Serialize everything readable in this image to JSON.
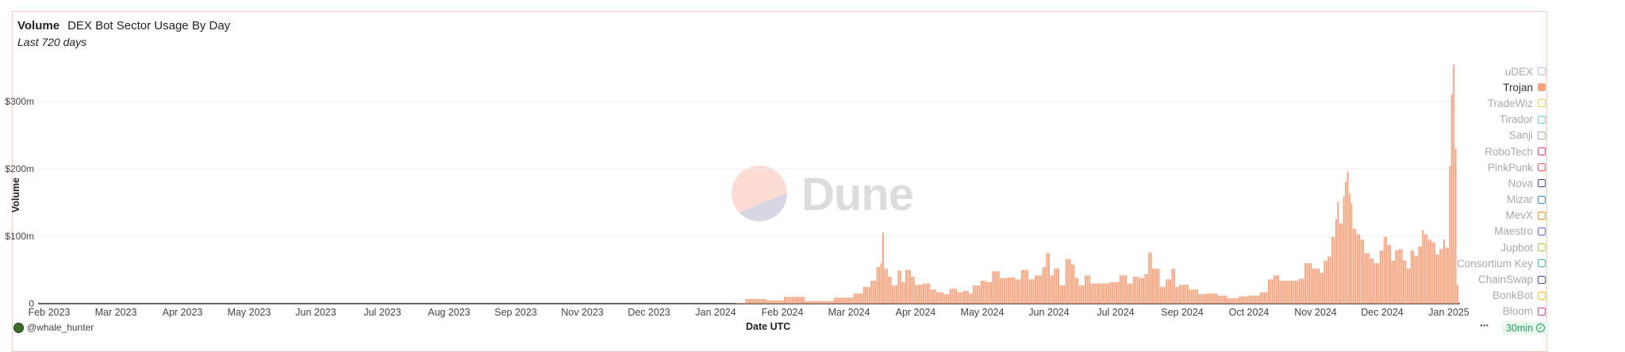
{
  "header": {
    "metric": "Volume",
    "title": "DEX Bot Sector Usage By Day",
    "subtitle": "Last 720 days"
  },
  "footer": {
    "author": "@whale_hunter",
    "more": "···",
    "refresh": "30min"
  },
  "watermark": "Dune",
  "colors": {
    "trojan": "#f6a47f",
    "grid": "#efefef",
    "axis": "#333333"
  },
  "legend": [
    {
      "name": "uDEX",
      "color": "#c9b9e6",
      "active": false
    },
    {
      "name": "Trojan",
      "color": "#f6a47f",
      "active": true
    },
    {
      "name": "TradeWiz",
      "color": "#f2cf5e",
      "active": false
    },
    {
      "name": "Tirador",
      "color": "#72cfd6",
      "active": false
    },
    {
      "name": "Sanji",
      "color": "#a8a8a8",
      "active": false
    },
    {
      "name": "RoboTech",
      "color": "#d2368c",
      "active": false
    },
    {
      "name": "PinkPunk",
      "color": "#e54f58",
      "active": false
    },
    {
      "name": "Nova",
      "color": "#4a3f8e",
      "active": false
    },
    {
      "name": "Mizar",
      "color": "#2a8ed3",
      "active": false
    },
    {
      "name": "MevX",
      "color": "#e58f2a",
      "active": false
    },
    {
      "name": "Maestro",
      "color": "#6a5fd6",
      "active": false
    },
    {
      "name": "Jupbot",
      "color": "#a6c648",
      "active": false
    },
    {
      "name": "Consortium Key",
      "color": "#38b698",
      "active": false
    },
    {
      "name": "ChainSwap",
      "color": "#4a4a98",
      "active": false
    },
    {
      "name": "BonkBot",
      "color": "#efbf1f",
      "active": false
    },
    {
      "name": "Bloom",
      "color": "#bf3f9f",
      "active": false
    }
  ],
  "chart_data": {
    "type": "bar",
    "stacked": true,
    "xlabel": "Date UTC",
    "ylabel": "Volume",
    "x_range": [
      "2023-01-16",
      "2025-01-05"
    ],
    "ylim": [
      0,
      360000000
    ],
    "grid": true,
    "legend_placement": "right",
    "x_ticks": [
      "Feb 2023",
      "Mar 2023",
      "Apr 2023",
      "May 2023",
      "Jun 2023",
      "Jul 2023",
      "Aug 2023",
      "Sep 2023",
      "Nov 2023",
      "Dec 2023",
      "Jan 2024",
      "Feb 2024",
      "Mar 2024",
      "Apr 2024",
      "May 2024",
      "Jun 2024",
      "Jul 2024",
      "Sep 2024",
      "Oct 2024",
      "Nov 2024",
      "Dec 2024",
      "Jan 2025"
    ],
    "y_ticks": [
      {
        "value": 0,
        "label": "0"
      },
      {
        "value": 100000000,
        "label": "$100m"
      },
      {
        "value": 200000000,
        "label": "$200m"
      },
      {
        "value": 300000000,
        "label": "$300m"
      }
    ],
    "series": [
      {
        "name": "Trojan",
        "unit": "USD millions",
        "points": [
          [
            "2023-12-28",
            1
          ],
          [
            "2024-01-06",
            7
          ],
          [
            "2024-01-18",
            5
          ],
          [
            "2024-01-24",
            10
          ],
          [
            "2024-02-09",
            4
          ],
          [
            "2024-02-24",
            9
          ],
          [
            "2024-02-28",
            15
          ],
          [
            "2024-03-05",
            25
          ],
          [
            "2024-03-08",
            34
          ],
          [
            "2024-03-10",
            54
          ],
          [
            "2024-03-12",
            60
          ],
          [
            "2024-03-13",
            106
          ],
          [
            "2024-03-14",
            52
          ],
          [
            "2024-03-16",
            40
          ],
          [
            "2024-03-19",
            27
          ],
          [
            "2024-03-21",
            49
          ],
          [
            "2024-03-23",
            32
          ],
          [
            "2024-03-26",
            50
          ],
          [
            "2024-03-28",
            40
          ],
          [
            "2024-03-31",
            28
          ],
          [
            "2024-04-04",
            30
          ],
          [
            "2024-04-08",
            21
          ],
          [
            "2024-04-11",
            17
          ],
          [
            "2024-04-15",
            14
          ],
          [
            "2024-04-18",
            22
          ],
          [
            "2024-04-22",
            17
          ],
          [
            "2024-04-25",
            19
          ],
          [
            "2024-04-27",
            15
          ],
          [
            "2024-04-30",
            27
          ],
          [
            "2024-05-04",
            34
          ],
          [
            "2024-05-07",
            32
          ],
          [
            "2024-05-10",
            48
          ],
          [
            "2024-05-14",
            38
          ],
          [
            "2024-05-18",
            39
          ],
          [
            "2024-05-22",
            36
          ],
          [
            "2024-05-25",
            50
          ],
          [
            "2024-05-29",
            36
          ],
          [
            "2024-06-01",
            42
          ],
          [
            "2024-06-05",
            54
          ],
          [
            "2024-06-06",
            75
          ],
          [
            "2024-06-08",
            42
          ],
          [
            "2024-06-11",
            52
          ],
          [
            "2024-06-14",
            27
          ],
          [
            "2024-06-17",
            66
          ],
          [
            "2024-06-19",
            58
          ],
          [
            "2024-06-21",
            38
          ],
          [
            "2024-06-23",
            27
          ],
          [
            "2024-06-27",
            42
          ],
          [
            "2024-06-30",
            30
          ],
          [
            "2024-07-05",
            30
          ],
          [
            "2024-07-12",
            32
          ],
          [
            "2024-07-15",
            42
          ],
          [
            "2024-07-19",
            30
          ],
          [
            "2024-07-22",
            40
          ],
          [
            "2024-07-25",
            38
          ],
          [
            "2024-07-27",
            44
          ],
          [
            "2024-07-29",
            76
          ],
          [
            "2024-08-01",
            52
          ],
          [
            "2024-08-05",
            25
          ],
          [
            "2024-08-08",
            36
          ],
          [
            "2024-08-10",
            52
          ],
          [
            "2024-08-12",
            25
          ],
          [
            "2024-08-15",
            28
          ],
          [
            "2024-08-21",
            21
          ],
          [
            "2024-08-25",
            14
          ],
          [
            "2024-08-30",
            15
          ],
          [
            "2024-09-05",
            12
          ],
          [
            "2024-09-10",
            8
          ],
          [
            "2024-09-16",
            11
          ],
          [
            "2024-09-21",
            12
          ],
          [
            "2024-09-27",
            17
          ],
          [
            "2024-09-30",
            36
          ],
          [
            "2024-10-02",
            42
          ],
          [
            "2024-10-06",
            34
          ],
          [
            "2024-10-12",
            34
          ],
          [
            "2024-10-16",
            37
          ],
          [
            "2024-10-19",
            60
          ],
          [
            "2024-10-23",
            52
          ],
          [
            "2024-10-27",
            46
          ],
          [
            "2024-10-28",
            64
          ],
          [
            "2024-10-31",
            70
          ],
          [
            "2024-11-01",
            99
          ],
          [
            "2024-11-03",
            125
          ],
          [
            "2024-11-04",
            151
          ],
          [
            "2024-11-05",
            119
          ],
          [
            "2024-11-07",
            159
          ],
          [
            "2024-11-08",
            181
          ],
          [
            "2024-11-09",
            196
          ],
          [
            "2024-11-10",
            163
          ],
          [
            "2024-11-11",
            149
          ],
          [
            "2024-11-12",
            111
          ],
          [
            "2024-11-14",
            103
          ],
          [
            "2024-11-16",
            95
          ],
          [
            "2024-11-19",
            75
          ],
          [
            "2024-11-21",
            67
          ],
          [
            "2024-11-24",
            60
          ],
          [
            "2024-11-26",
            79
          ],
          [
            "2024-11-28",
            99
          ],
          [
            "2024-11-30",
            87
          ],
          [
            "2024-12-02",
            64
          ],
          [
            "2024-12-04",
            79
          ],
          [
            "2024-12-06",
            81
          ],
          [
            "2024-12-08",
            64
          ],
          [
            "2024-12-10",
            52
          ],
          [
            "2024-12-12",
            79
          ],
          [
            "2024-12-14",
            71
          ],
          [
            "2024-12-16",
            85
          ],
          [
            "2024-12-18",
            109
          ],
          [
            "2024-12-19",
            103
          ],
          [
            "2024-12-21",
            95
          ],
          [
            "2024-12-23",
            91
          ],
          [
            "2024-12-25",
            73
          ],
          [
            "2024-12-27",
            81
          ],
          [
            "2024-12-29",
            95
          ],
          [
            "2024-12-30",
            83
          ],
          [
            "2025-01-01",
            204
          ],
          [
            "2025-01-02",
            311
          ],
          [
            "2025-01-03",
            355
          ],
          [
            "2025-01-04",
            230
          ],
          [
            "2025-01-05",
            28
          ]
        ]
      }
    ]
  }
}
